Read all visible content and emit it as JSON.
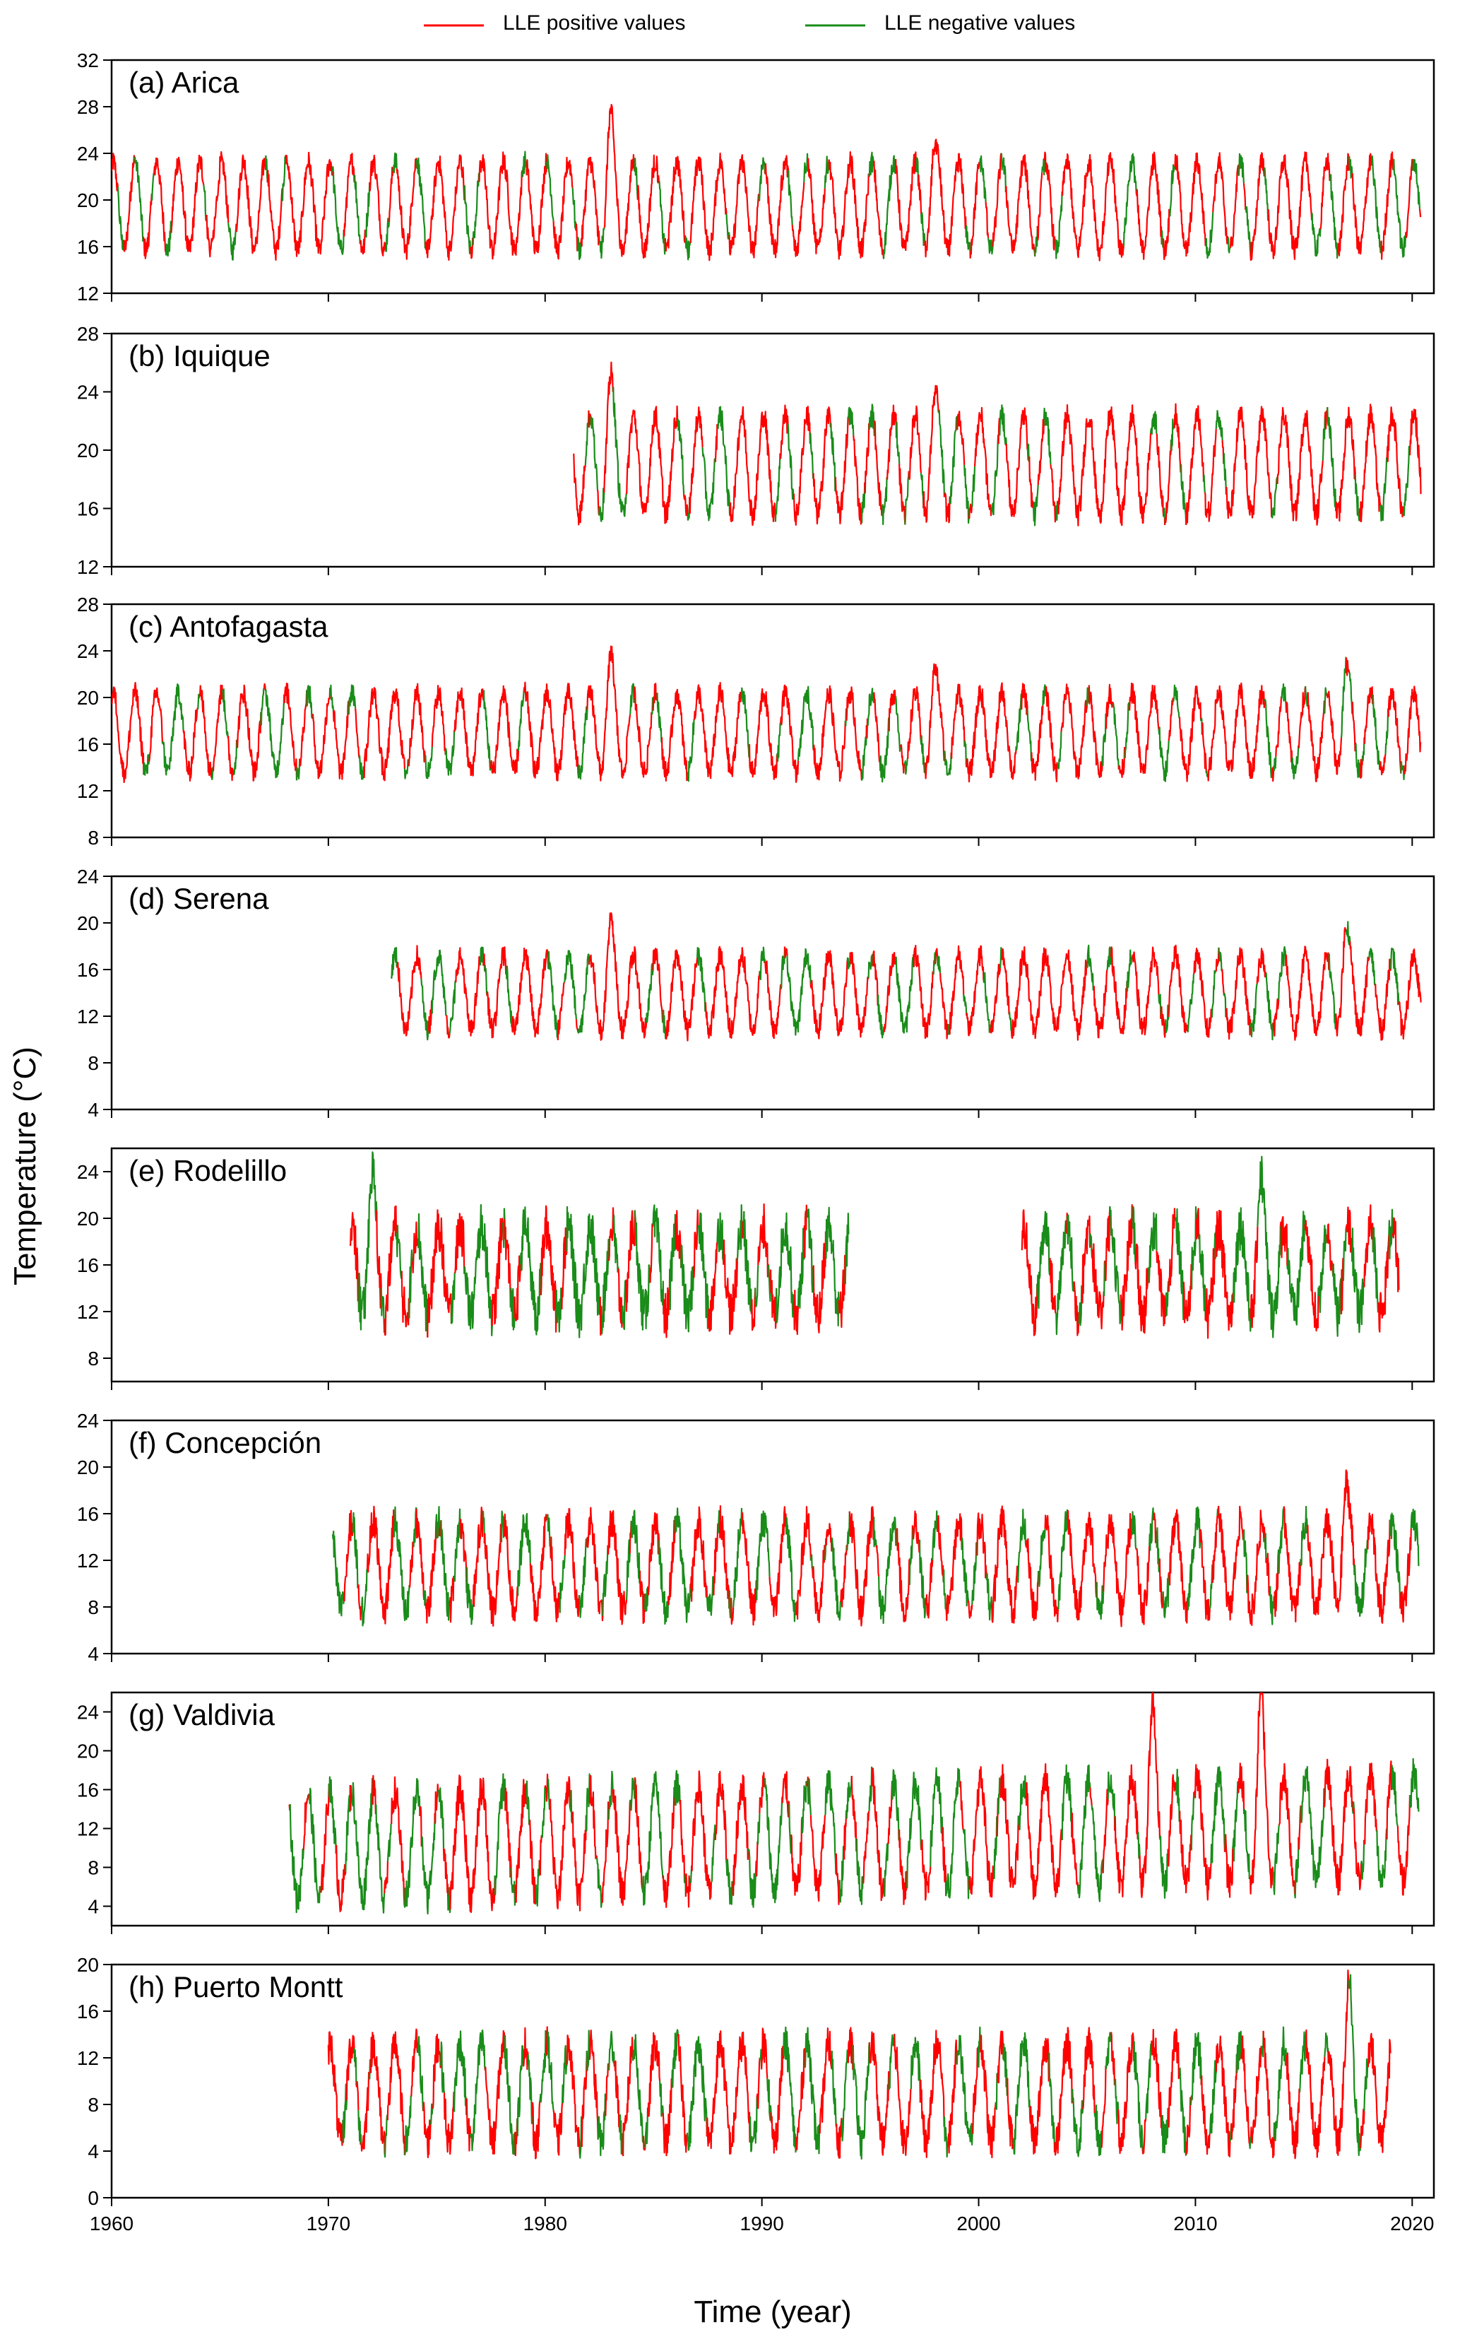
{
  "legend": {
    "positive": {
      "label": "LLE positive values",
      "color": "#ff0000"
    },
    "negative": {
      "label": "LLE negative values",
      "color": "#1a8c1a"
    }
  },
  "chart_data": {
    "type": "line",
    "xlabel": "Time (year)",
    "ylabel": "Temperature (°C)",
    "xlim": [
      1960,
      2021
    ],
    "xticks": [
      1960,
      1970,
      1980,
      1990,
      2000,
      2010,
      2020
    ],
    "panels": [
      {
        "title": "(a) Arica",
        "ylim": [
          12,
          32
        ],
        "yticks": [
          12,
          16,
          20,
          24,
          28,
          32
        ],
        "segments": [
          [
            1960.0,
            2020.4
          ]
        ],
        "mean": 19.5,
        "amp": 3.8,
        "noise": 0.9,
        "trend": 0,
        "neg_frac": 0.18,
        "events": [
          {
            "year": 1983.0,
            "value": 28
          },
          {
            "year": 1997.9,
            "value": 26
          }
        ]
      },
      {
        "title": "(b) Iquique",
        "ylim": [
          12,
          28
        ],
        "yticks": [
          12,
          16,
          20,
          24,
          28
        ],
        "segments": [
          [
            1981.3,
            2020.4
          ]
        ],
        "mean": 19.0,
        "amp": 3.4,
        "noise": 0.8,
        "trend": 0,
        "neg_frac": 0.22,
        "events": [
          {
            "year": 1983.0,
            "value": 25.5
          },
          {
            "year": 1997.9,
            "value": 25
          }
        ]
      },
      {
        "title": "(c) Antofagasta",
        "ylim": [
          8,
          28
        ],
        "yticks": [
          8,
          12,
          16,
          20,
          24,
          28
        ],
        "segments": [
          [
            1960.0,
            2020.4
          ]
        ],
        "mean": 17.0,
        "amp": 3.4,
        "noise": 0.9,
        "trend": 0,
        "neg_frac": 0.2,
        "events": [
          {
            "year": 1983.0,
            "value": 24
          },
          {
            "year": 1997.9,
            "value": 23.5
          },
          {
            "year": 2016.9,
            "value": 24
          }
        ]
      },
      {
        "title": "(d) Serena",
        "ylim": [
          4,
          24
        ],
        "yticks": [
          4,
          8,
          12,
          16,
          20,
          24
        ],
        "segments": [
          [
            1972.9,
            2020.4
          ]
        ],
        "mean": 14.0,
        "amp": 3.2,
        "noise": 0.9,
        "trend": 0,
        "neg_frac": 0.22,
        "events": [
          {
            "year": 1983.0,
            "value": 20.5
          },
          {
            "year": 2016.9,
            "value": 21
          }
        ]
      },
      {
        "title": "(e) Rodelillo",
        "ylim": [
          6,
          26
        ],
        "yticks": [
          8,
          12,
          16,
          20,
          24
        ],
        "segments": [
          [
            1971.0,
            1994.0
          ],
          [
            2002.0,
            2019.4
          ]
        ],
        "mean": 15.5,
        "amp": 3.8,
        "noise": 2.0,
        "trend": 0,
        "neg_frac": 0.5,
        "events": [
          {
            "year": 1972.0,
            "value": 24.3
          },
          {
            "year": 2013.0,
            "value": 24
          }
        ]
      },
      {
        "title": "(f) Concepción",
        "ylim": [
          4,
          24
        ],
        "yticks": [
          4,
          8,
          12,
          16,
          20,
          24
        ],
        "segments": [
          [
            1970.2,
            2020.3
          ]
        ],
        "mean": 11.5,
        "amp": 3.8,
        "noise": 1.4,
        "trend": 0,
        "neg_frac": 0.28,
        "events": [
          {
            "year": 2016.9,
            "value": 20
          }
        ]
      },
      {
        "title": "(g) Valdivia",
        "ylim": [
          2,
          26
        ],
        "yticks": [
          4,
          8,
          12,
          16,
          20,
          24
        ],
        "segments": [
          [
            1968.2,
            2020.3
          ]
        ],
        "mean": 11.0,
        "amp": 5.5,
        "noise": 1.7,
        "trend": 0.04,
        "neg_frac": 0.32,
        "events": [
          {
            "year": 2013.0,
            "value": 26
          },
          {
            "year": 2008.0,
            "value": 25
          }
        ]
      },
      {
        "title": "(h) Puerto Montt",
        "ylim": [
          0,
          20
        ],
        "yticks": [
          0,
          4,
          8,
          12,
          16,
          20
        ],
        "segments": [
          [
            1970.0,
            2019.0
          ]
        ],
        "mean": 9.0,
        "amp": 4.2,
        "noise": 1.5,
        "trend": 0,
        "neg_frac": 0.4,
        "events": [
          {
            "year": 2017.1,
            "value": 18.7
          }
        ]
      }
    ]
  }
}
